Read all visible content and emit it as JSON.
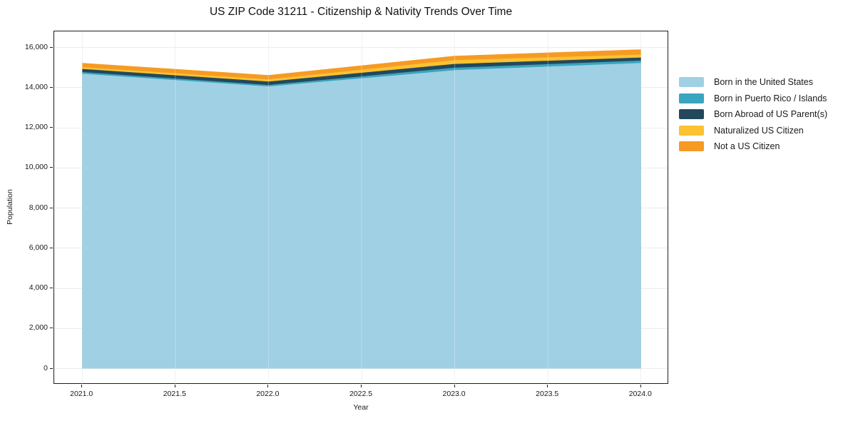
{
  "title": "US ZIP Code 31211 - Citizenship & Nativity Trends Over Time",
  "axes": {
    "x_label": "Year",
    "y_label": "Population",
    "x_ticks": [
      "2021.0",
      "2021.5",
      "2022.0",
      "2022.5",
      "2023.0",
      "2023.5",
      "2024.0"
    ],
    "y_ticks": [
      "0",
      "2,000",
      "4,000",
      "6,000",
      "8,000",
      "10,000",
      "12,000",
      "14,000",
      "16,000"
    ]
  },
  "colors": {
    "grid": "#ececec",
    "spine": "#1c1c1c",
    "text": "#1a1a1a",
    "background": "#ffffff"
  },
  "chart_data": {
    "type": "area",
    "stacked": true,
    "title": "US ZIP Code 31211 - Citizenship & Nativity Trends Over Time",
    "xlabel": "Year",
    "ylabel": "Population",
    "x": [
      2021,
      2022,
      2023,
      2024
    ],
    "series": [
      {
        "name": "Born in the United States",
        "color": "#9fd0e4",
        "values": [
          14690,
          14060,
          14870,
          15225
        ]
      },
      {
        "name": "Born in Puerto Rico / Islands",
        "color": "#3aa5bf",
        "values": [
          85,
          70,
          120,
          120
        ]
      },
      {
        "name": "Born Abroad of US Parent(s)",
        "color": "#23485c",
        "values": [
          155,
          170,
          190,
          155
        ]
      },
      {
        "name": "Naturalized US Citizen",
        "color": "#fcc232",
        "values": [
          85,
          110,
          190,
          145
        ]
      },
      {
        "name": "Not a US Citizen",
        "color": "#f59b23",
        "values": [
          215,
          215,
          215,
          260
        ]
      }
    ],
    "xlim": [
      2020.85,
      2024.15
    ],
    "ylim": [
      -800,
      16800
    ],
    "grid": true,
    "legend_position": "right"
  }
}
